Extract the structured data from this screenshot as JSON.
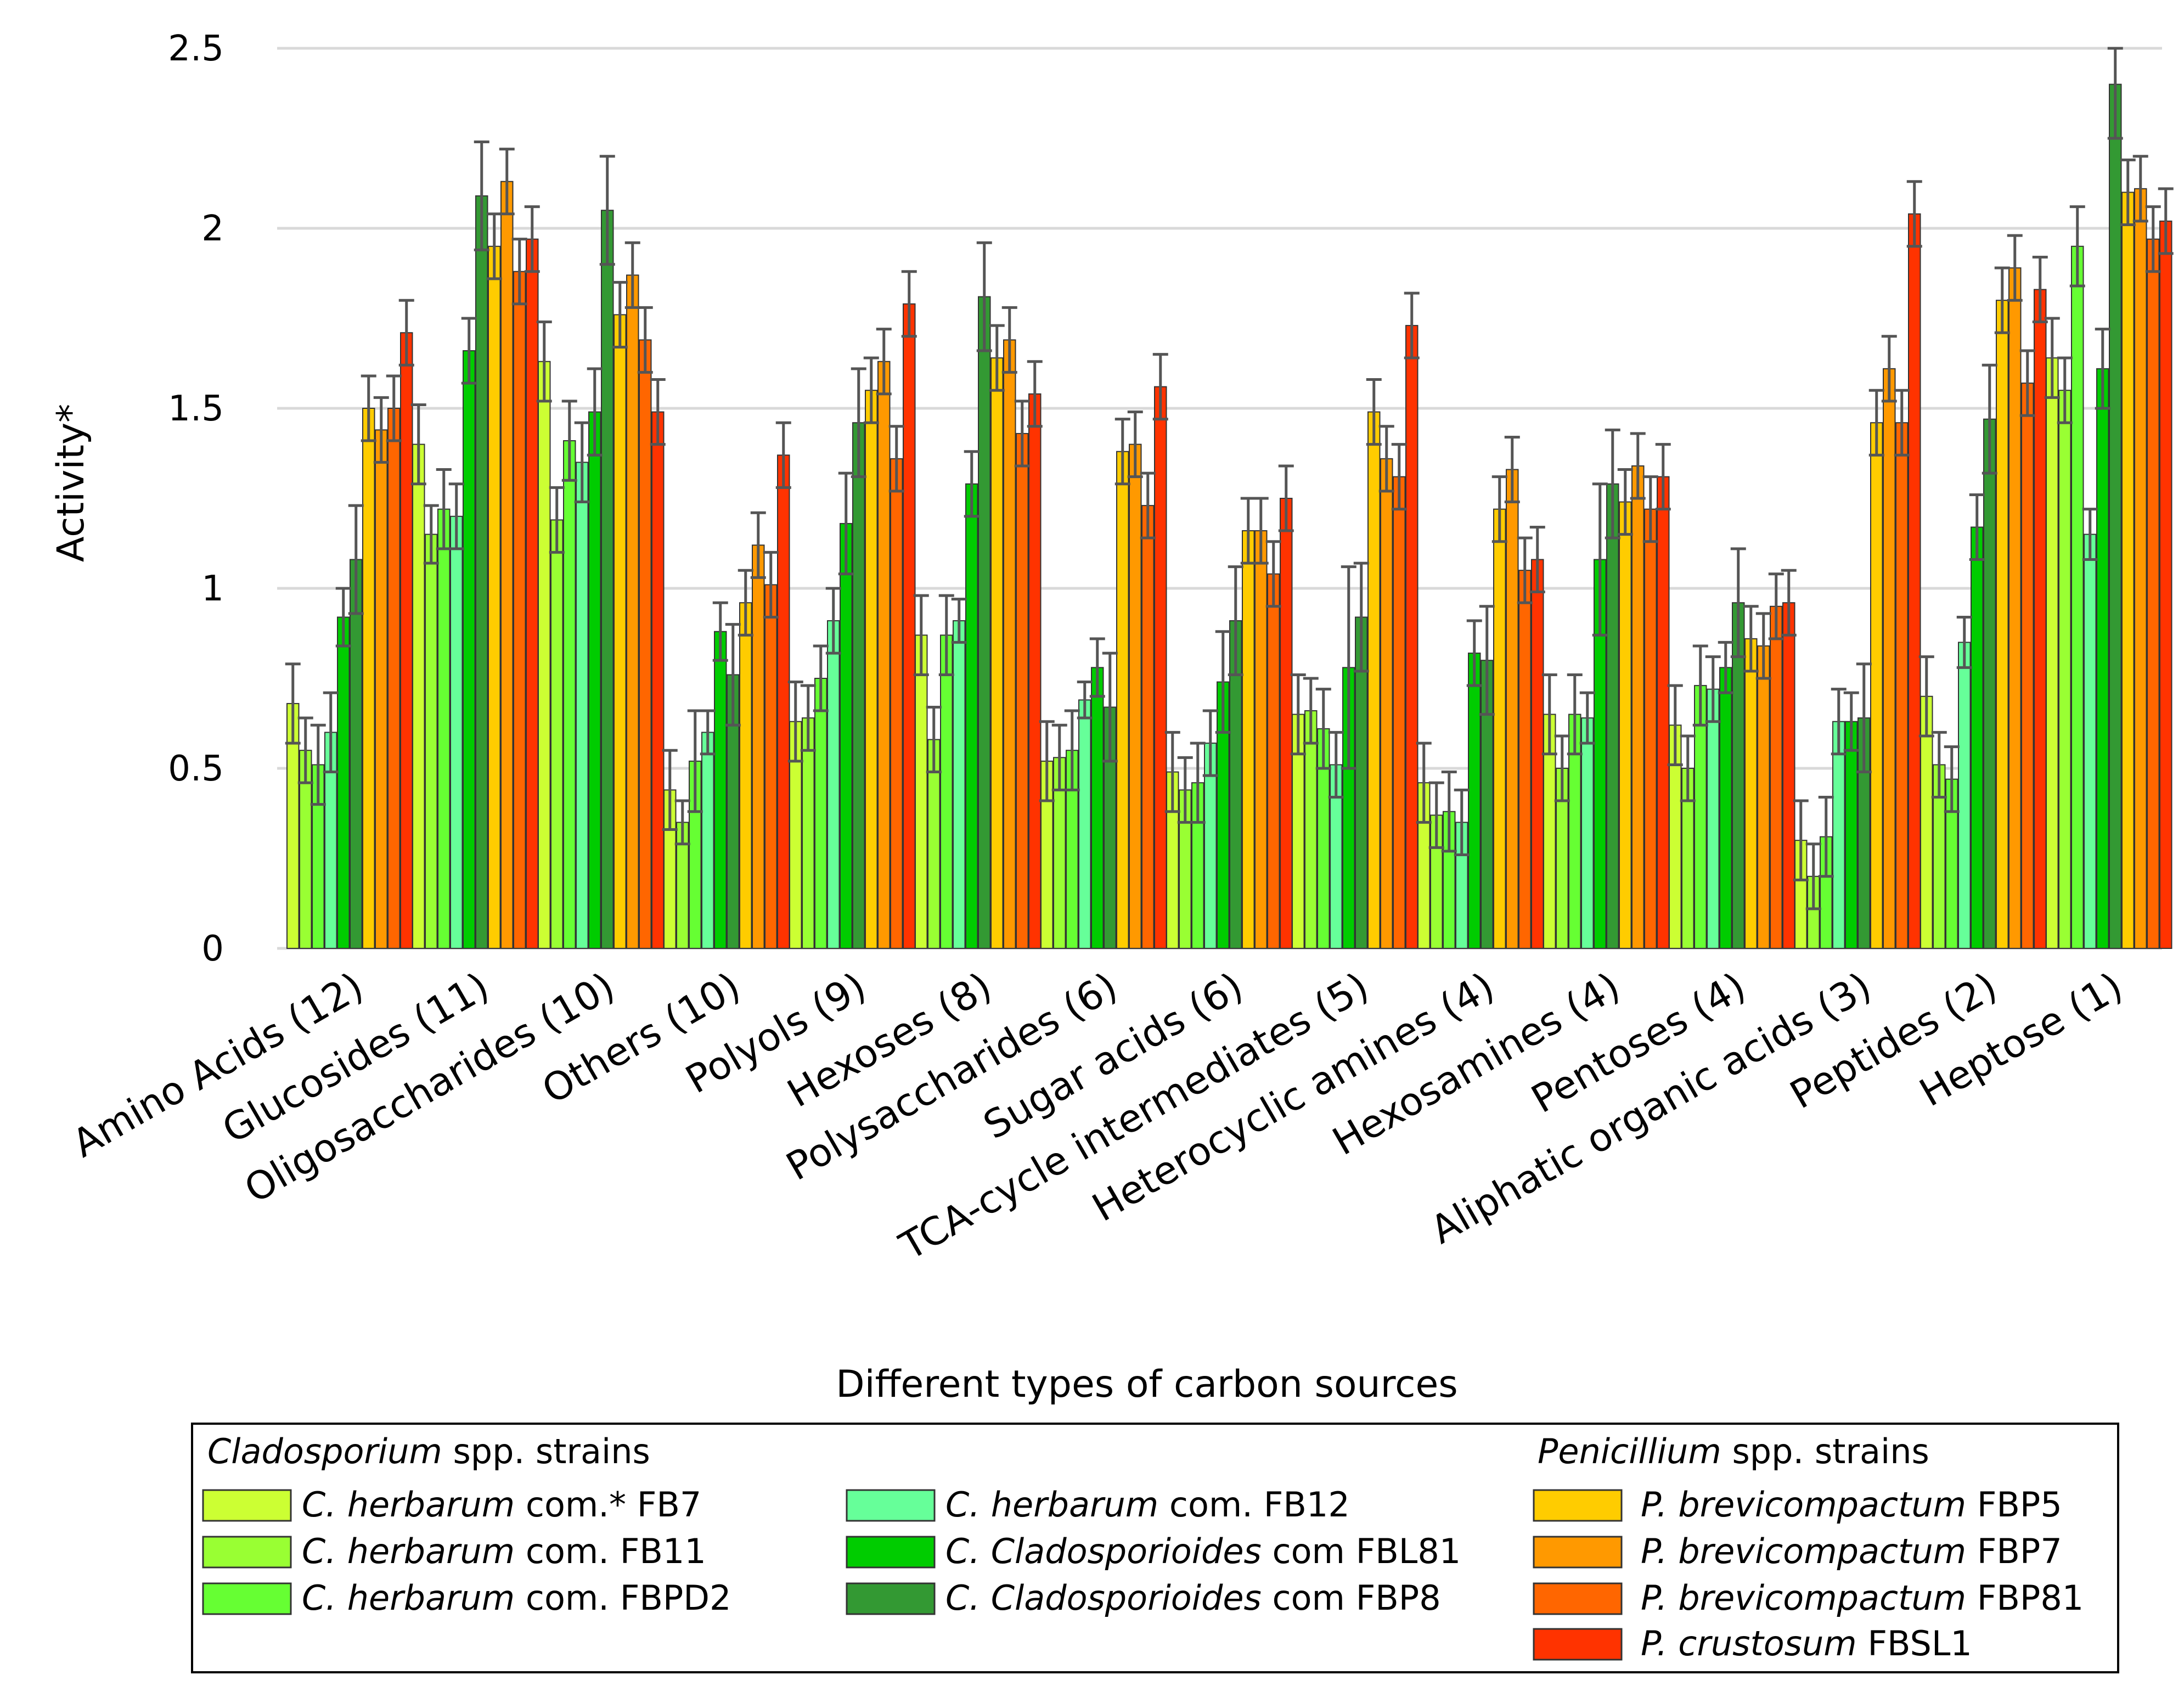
{
  "chart_data": {
    "type": "bar",
    "title": "",
    "xlabel": "Different types of carbon sources",
    "ylabel": "Activity*",
    "ylim": [
      0,
      2.5
    ],
    "yticks": [
      0,
      0.5,
      1,
      1.5,
      2,
      2.5
    ],
    "ytick_labels": [
      "0",
      "0.5",
      "1",
      "1.5",
      "2",
      "2.5"
    ],
    "grid": true,
    "categories": [
      "Amino Acids (12)",
      "Glucosides (11)",
      "Oligosaccharides (10)",
      "Others (10)",
      "Polyols (9)",
      "Hexoses (8)",
      "Polysaccharides (6)",
      "Sugar acids (6)",
      "TCA-cycle intermediates (5)",
      "Heterocyclic amines (4)",
      "Hexosamines (4)",
      "Pentoses (4)",
      "Aliphatic organic acids (3)",
      "Peptides (2)",
      "Heptose (1)"
    ],
    "series": [
      {
        "name": "C. herbarum com.* FB7",
        "color": "#ccff33",
        "values": [
          0.68,
          1.4,
          1.63,
          0.44,
          0.63,
          0.87,
          0.52,
          0.49,
          0.65,
          0.46,
          0.65,
          0.62,
          0.3,
          0.7,
          1.64
        ],
        "errors": [
          0.11,
          0.11,
          0.11,
          0.11,
          0.11,
          0.11,
          0.11,
          0.11,
          0.11,
          0.11,
          0.11,
          0.11,
          0.11,
          0.11,
          0.11
        ]
      },
      {
        "name": "C. herbarum com. FB11",
        "color": "#99ff33",
        "values": [
          0.55,
          1.15,
          1.19,
          0.35,
          0.64,
          0.58,
          0.53,
          0.44,
          0.66,
          0.37,
          0.5,
          0.5,
          0.2,
          0.51,
          1.55
        ],
        "errors": [
          0.09,
          0.08,
          0.09,
          0.06,
          0.09,
          0.09,
          0.09,
          0.09,
          0.09,
          0.09,
          0.09,
          0.09,
          0.09,
          0.09,
          0.09
        ]
      },
      {
        "name": "C. herbarum com. FBPD2",
        "color": "#66ff33",
        "values": [
          0.51,
          1.22,
          1.41,
          0.52,
          0.75,
          0.87,
          0.55,
          0.46,
          0.61,
          0.38,
          0.65,
          0.73,
          0.31,
          0.47,
          1.95
        ],
        "errors": [
          0.11,
          0.11,
          0.11,
          0.14,
          0.09,
          0.11,
          0.11,
          0.11,
          0.11,
          0.11,
          0.11,
          0.11,
          0.11,
          0.09,
          0.11
        ]
      },
      {
        "name": "C. herbarum com. FB12",
        "color": "#66ff99",
        "values": [
          0.6,
          1.2,
          1.35,
          0.6,
          0.91,
          0.91,
          0.69,
          0.57,
          0.51,
          0.35,
          0.64,
          0.72,
          0.63,
          0.85,
          1.15
        ],
        "errors": [
          0.11,
          0.09,
          0.11,
          0.06,
          0.09,
          0.06,
          0.05,
          0.09,
          0.09,
          0.09,
          0.07,
          0.09,
          0.09,
          0.07,
          0.07
        ]
      },
      {
        "name": "C. Cladosporioides com FBL81",
        "color": "#00cc00",
        "values": [
          0.92,
          1.66,
          1.49,
          0.88,
          1.18,
          1.29,
          0.78,
          0.74,
          0.78,
          0.82,
          1.08,
          0.78,
          0.63,
          1.17,
          1.61
        ],
        "errors": [
          0.08,
          0.09,
          0.12,
          0.08,
          0.14,
          0.09,
          0.08,
          0.14,
          0.28,
          0.09,
          0.21,
          0.07,
          0.08,
          0.09,
          0.11
        ]
      },
      {
        "name": "C. Cladosporioides com FBP8",
        "color": "#339933",
        "values": [
          1.08,
          2.09,
          2.05,
          0.76,
          1.46,
          1.81,
          0.67,
          0.91,
          0.92,
          0.8,
          1.29,
          0.96,
          0.64,
          1.47,
          2.4
        ],
        "errors": [
          0.15,
          0.15,
          0.15,
          0.14,
          0.15,
          0.15,
          0.15,
          0.15,
          0.15,
          0.15,
          0.15,
          0.15,
          0.15,
          0.15,
          0.15
        ]
      },
      {
        "name": "P. brevicompactum FBP5",
        "color": "#ffcc00",
        "values": [
          1.5,
          1.95,
          1.76,
          0.96,
          1.55,
          1.64,
          1.38,
          1.16,
          1.49,
          1.22,
          1.24,
          0.86,
          1.46,
          1.8,
          2.1
        ],
        "errors": [
          0.09,
          0.09,
          0.09,
          0.09,
          0.09,
          0.09,
          0.09,
          0.09,
          0.09,
          0.09,
          0.09,
          0.09,
          0.09,
          0.09,
          0.09
        ]
      },
      {
        "name": "P. brevicompactum FBP7",
        "color": "#ff9900",
        "values": [
          1.44,
          2.13,
          1.87,
          1.12,
          1.63,
          1.69,
          1.4,
          1.16,
          1.36,
          1.33,
          1.34,
          0.84,
          1.61,
          1.89,
          2.11
        ],
        "errors": [
          0.09,
          0.09,
          0.09,
          0.09,
          0.09,
          0.09,
          0.09,
          0.09,
          0.09,
          0.09,
          0.09,
          0.09,
          0.09,
          0.09,
          0.09
        ]
      },
      {
        "name": "P. brevicompactum FBP81",
        "color": "#ff6600",
        "values": [
          1.5,
          1.88,
          1.69,
          1.01,
          1.36,
          1.43,
          1.23,
          1.04,
          1.31,
          1.05,
          1.22,
          0.95,
          1.46,
          1.57,
          1.97
        ],
        "errors": [
          0.09,
          0.09,
          0.09,
          0.09,
          0.09,
          0.09,
          0.09,
          0.09,
          0.09,
          0.09,
          0.09,
          0.09,
          0.09,
          0.09,
          0.09
        ]
      },
      {
        "name": "P. crustosum FBSL1",
        "color": "#ff3300",
        "values": [
          1.71,
          1.97,
          1.49,
          1.37,
          1.79,
          1.54,
          1.56,
          1.25,
          1.73,
          1.08,
          1.31,
          0.96,
          2.04,
          1.83,
          2.02
        ],
        "errors": [
          0.09,
          0.09,
          0.09,
          0.09,
          0.09,
          0.09,
          0.09,
          0.09,
          0.09,
          0.09,
          0.09,
          0.09,
          0.09,
          0.09,
          0.09
        ]
      }
    ],
    "legend": {
      "placement": "bottom",
      "groups": [
        {
          "heading_italic": "Cladosporium",
          "heading_rest": " spp. strains"
        },
        {
          "heading_italic": "Penicillium",
          "heading_rest": " spp. strains"
        }
      ],
      "entries": [
        {
          "italic": "C. herbarum",
          "rest": " com.* FB7"
        },
        {
          "italic": "C. herbarum",
          "rest": " com. FB11"
        },
        {
          "italic": "C. herbarum",
          "rest": " com. FBPD2"
        },
        {
          "italic": "C. herbarum",
          "rest": " com. FB12"
        },
        {
          "italic": "C. Cladosporioides",
          "rest": " com FBL81"
        },
        {
          "italic": "C. Cladosporioides",
          "rest": " com FBP8"
        },
        {
          "italic": "P. brevicompactum",
          "rest": " FBP5"
        },
        {
          "italic": "P. brevicompactum",
          "rest": " FBP7"
        },
        {
          "italic": "P. brevicompactum",
          "rest": " FBP81"
        },
        {
          "italic": "P. crustosum",
          "rest": " FBSL1"
        }
      ]
    }
  }
}
